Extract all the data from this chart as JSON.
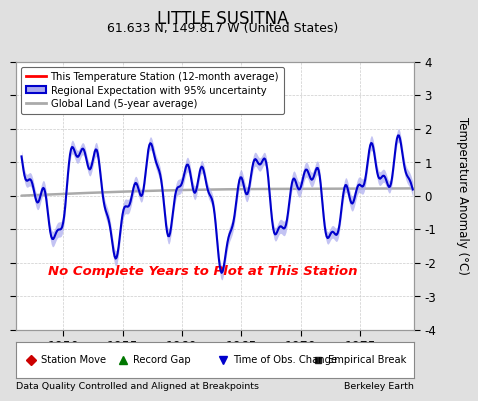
{
  "title": "LITTLE SUSITNA",
  "subtitle": "61.633 N, 149.817 W (United States)",
  "ylabel": "Temperature Anomaly (°C)",
  "xlabel_years": [
    1950,
    1955,
    1960,
    1965,
    1970,
    1975
  ],
  "xlim": [
    1946.0,
    1979.5
  ],
  "ylim": [
    -4,
    4
  ],
  "yticks": [
    -4,
    -3,
    -2,
    -1,
    0,
    1,
    2,
    3,
    4
  ],
  "background_color": "#e0e0e0",
  "plot_bg_color": "#ffffff",
  "no_data_text": "No Complete Years to Plot at This Station",
  "no_data_color": "#ff0000",
  "footer_left": "Data Quality Controlled and Aligned at Breakpoints",
  "footer_right": "Berkeley Earth",
  "regional_color": "#0000cc",
  "regional_fill_color": "#aaaaee",
  "global_color": "#aaaaaa",
  "station_color": "#ff0000",
  "grid_color": "#cccccc"
}
